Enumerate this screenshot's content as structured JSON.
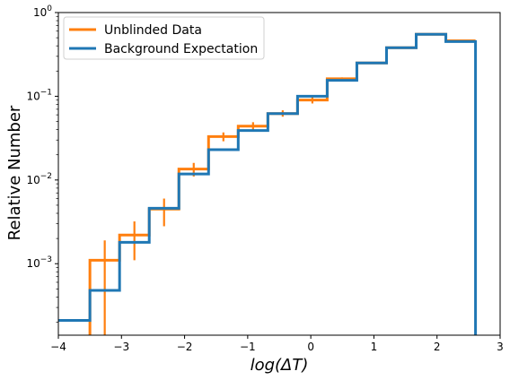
{
  "chart_data": {
    "type": "step",
    "xlabel": "log(ΔT)",
    "ylabel": "Relative Number",
    "xlim": [
      -4,
      3
    ],
    "ylim": [
      0.00014,
      1.0
    ],
    "yscale": "log",
    "x_ticks": [
      -4,
      -3,
      -2,
      -1,
      0,
      1,
      2,
      3
    ],
    "x_tick_labels": [
      "−4",
      "−3",
      "−2",
      "−1",
      "0",
      "1",
      "2",
      "3"
    ],
    "y_ticks": [
      0.001,
      0.01,
      0.1,
      1
    ],
    "y_tick_labels": [
      {
        "base": "10",
        "exp": "−3"
      },
      {
        "base": "10",
        "exp": "−2"
      },
      {
        "base": "10",
        "exp": "−1"
      },
      {
        "base": "10",
        "exp": "0"
      }
    ],
    "grid": false,
    "legend": {
      "position": "top-left"
    },
    "bin_edges": [
      -4.0,
      -3.5,
      -3.03,
      -2.56,
      -2.09,
      -1.62,
      -1.15,
      -0.68,
      -0.21,
      0.26,
      0.73,
      1.2,
      1.67,
      2.14,
      2.61
    ],
    "series": [
      {
        "name": "Unblinded Data",
        "color": "#ff7f0e",
        "bin_edges": [
          -3.5,
          -3.03,
          -2.56,
          -2.09,
          -1.62,
          -1.15,
          -0.68,
          -0.21,
          0.26,
          0.73,
          1.2,
          1.67,
          2.14,
          2.61
        ],
        "values": [
          0.0011,
          0.0022,
          0.0045,
          0.0135,
          0.033,
          0.044,
          0.062,
          0.09,
          0.162,
          0.25,
          0.38,
          0.55,
          0.46
        ],
        "errors_low": [
          0.00033,
          0.0011,
          0.0028,
          0.011,
          0.029,
          0.039,
          0.057,
          0.082,
          0.156,
          0.245,
          0.375,
          0.545,
          0.455
        ],
        "errors_high": [
          0.0019,
          0.0032,
          0.006,
          0.016,
          0.037,
          0.049,
          0.068,
          0.098,
          0.168,
          0.257,
          0.387,
          0.557,
          0.467
        ],
        "lower_clip_first_bin": true
      },
      {
        "name": "Background Expectation",
        "color": "#1f77b4",
        "bin_edges": [
          -4.0,
          -3.5,
          -3.03,
          -2.56,
          -2.09,
          -1.62,
          -1.15,
          -0.68,
          -0.21,
          0.26,
          0.73,
          1.2,
          1.67,
          2.14,
          2.61
        ],
        "values": [
          0.00021,
          0.00048,
          0.0018,
          0.0046,
          0.0118,
          0.023,
          0.039,
          0.062,
          0.1,
          0.155,
          0.25,
          0.38,
          0.55,
          0.45
        ],
        "drop_to_floor_at_end": true
      }
    ]
  }
}
